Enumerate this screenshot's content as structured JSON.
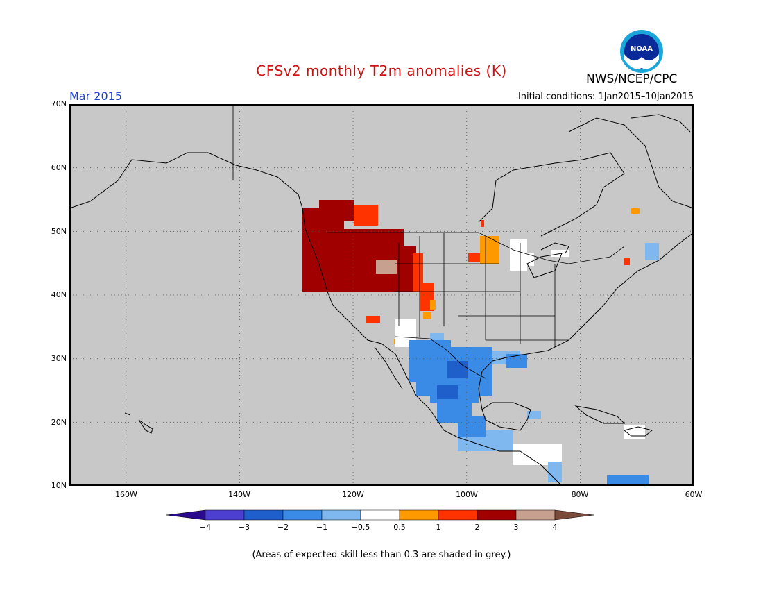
{
  "title": "CFSv2 monthly T2m anomalies (K)",
  "agency": "NWS/NCEP/CPC",
  "logo_text": "NOAA",
  "period": "Mar 2015",
  "initial_conditions": "Initial conditions: 1Jan2015–10Jan2015",
  "note": "(Areas of expected skill less than 0.3 are shaded in grey.)",
  "map": {
    "background_color": "#c8c8c8",
    "lat_range": [
      10,
      70
    ],
    "lon_range": [
      -170,
      -60
    ],
    "lat_labels": [
      "70N",
      "60N",
      "50N",
      "40N",
      "30N",
      "20N",
      "10N"
    ],
    "lon_labels": [
      "160W",
      "140W",
      "120W",
      "100W",
      "80W",
      "60W"
    ],
    "grid": "dotted"
  },
  "colorbar": {
    "labels": [
      "−4",
      "−3",
      "−2",
      "−1",
      "−0.5",
      "0.5",
      "1",
      "2",
      "3",
      "4"
    ],
    "colors": [
      "#2a0a8c",
      "#4d3fd0",
      "#1f5fcc",
      "#3a8be6",
      "#7eb8ee",
      "#ffffff",
      "#ff9900",
      "#ff3300",
      "#a00000",
      "#c8a090",
      "#7a4a3a"
    ]
  }
}
